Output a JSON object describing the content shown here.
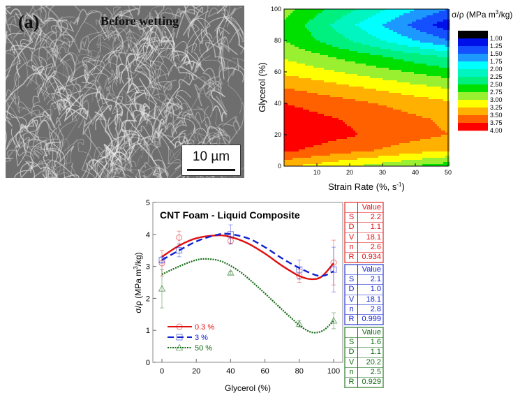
{
  "sem_panel": {
    "panel_label": "(a)",
    "caption": "Before wetting",
    "scale_bar": "10 µm"
  },
  "chart_data": [
    {
      "type": "heatmap",
      "subtype": "filled-contour",
      "xlabel": "Strain Rate (%, s",
      "xlabel_sup": "-1",
      "xlabel_end": ")",
      "ylabel": "Glycerol (%)",
      "colorbar_title": "σ/ρ (MPa m",
      "colorbar_title_sup": "3",
      "colorbar_title_end": "/kg)",
      "xlim": [
        0,
        50
      ],
      "ylim": [
        0,
        100
      ],
      "xticks": [
        "10",
        "20",
        "30",
        "40",
        "50"
      ],
      "yticks": [
        "0",
        "20",
        "40",
        "60",
        "80",
        "100"
      ],
      "x": [
        0,
        10,
        20,
        30,
        40,
        50
      ],
      "y": [
        0,
        10,
        20,
        30,
        40,
        50,
        60,
        70,
        80,
        90,
        100
      ],
      "z": [
        [
          3.3,
          3.16,
          3.02,
          2.88,
          2.74,
          2.6
        ],
        [
          3.8,
          3.69,
          3.58,
          3.47,
          3.36,
          3.25
        ],
        [
          3.97,
          3.87,
          3.78,
          3.68,
          3.59,
          3.5
        ],
        [
          3.9,
          3.81,
          3.72,
          3.63,
          3.54,
          3.45
        ],
        [
          3.75,
          3.66,
          3.57,
          3.48,
          3.39,
          3.3
        ],
        [
          3.5,
          3.4,
          3.29,
          3.19,
          3.08,
          2.98
        ],
        [
          3.2,
          3.08,
          2.96,
          2.84,
          2.72,
          2.6
        ],
        [
          2.95,
          2.8,
          2.65,
          2.5,
          2.35,
          2.2
        ],
        [
          2.75,
          2.5,
          2.25,
          2.0,
          1.75,
          1.5
        ],
        [
          2.7,
          2.38,
          2.06,
          1.74,
          1.42,
          1.1
        ],
        [
          2.85,
          2.58,
          2.31,
          2.04,
          1.77,
          1.5
        ]
      ],
      "levels": [
        "1.00",
        "1.25",
        "1.50",
        "1.75",
        "2.00",
        "2.25",
        "2.50",
        "2.75",
        "3.00",
        "3.25",
        "3.50",
        "3.75",
        "4.00"
      ],
      "level_colors": [
        "#000000",
        "#0010e8",
        "#1450ff",
        "#1c98ff",
        "#00ffff",
        "#00f5c0",
        "#00f080",
        "#00e000",
        "#98f030",
        "#ffff00",
        "#ffb000",
        "#ff6000",
        "#ff0000"
      ]
    },
    {
      "type": "line",
      "title": "CNT Foam - Liquid Composite",
      "xlabel": "Glycerol (%)",
      "ylabel": "σ/ρ (MPa m",
      "ylabel_sup": "3",
      "ylabel_end": "/kg)",
      "xlim": [
        -5,
        105
      ],
      "ylim": [
        0,
        5
      ],
      "xticks": [
        "0",
        "20",
        "40",
        "60",
        "80",
        "100"
      ],
      "yticks": [
        "0",
        "1",
        "2",
        "3",
        "4",
        "5"
      ],
      "series": [
        {
          "name": "0.3 %",
          "color": "#e01010",
          "dash": "",
          "marker": "circle",
          "points": [
            [
              0,
              3.1,
              0.4
            ],
            [
              10,
              3.9,
              0.2
            ],
            [
              40,
              3.8,
              0.1
            ],
            [
              80,
              2.7,
              0.2
            ],
            [
              100,
              3.12,
              0.7
            ]
          ],
          "fit": [
            [
              0,
              3.3
            ],
            [
              10,
              3.65
            ],
            [
              20,
              3.88
            ],
            [
              32,
              3.97
            ],
            [
              40,
              3.92
            ],
            [
              50,
              3.72
            ],
            [
              60,
              3.4
            ],
            [
              70,
              3.02
            ],
            [
              80,
              2.7
            ],
            [
              87,
              2.6
            ],
            [
              93,
              2.68
            ],
            [
              100,
              3.1
            ]
          ],
          "params": [
            [
              "S",
              "2.2"
            ],
            [
              "D",
              "1.1"
            ],
            [
              "V",
              "18.1"
            ],
            [
              "n",
              "2.6"
            ],
            [
              "R",
              "0.934"
            ]
          ]
        },
        {
          "name": "3 %",
          "color": "#1020d0",
          "dash": "9,5",
          "marker": "square",
          "points": [
            [
              0,
              3.2,
              0.1
            ],
            [
              10,
              3.5,
              0.2
            ],
            [
              40,
              4.0,
              0.3
            ],
            [
              80,
              2.9,
              0.3
            ],
            [
              100,
              2.9,
              0.7
            ]
          ],
          "fit": [
            [
              0,
              3.2
            ],
            [
              10,
              3.5
            ],
            [
              20,
              3.78
            ],
            [
              30,
              3.96
            ],
            [
              38,
              4.02
            ],
            [
              50,
              3.88
            ],
            [
              60,
              3.6
            ],
            [
              70,
              3.25
            ],
            [
              80,
              2.95
            ],
            [
              90,
              2.72
            ],
            [
              95,
              2.72
            ],
            [
              100,
              2.85
            ]
          ],
          "params": [
            [
              "S",
              "2.1"
            ],
            [
              "D",
              "1.0"
            ],
            [
              "V",
              "18.1"
            ],
            [
              "n",
              "2.8"
            ],
            [
              "R",
              "0.999"
            ]
          ]
        },
        {
          "name": "50 %",
          "color": "#106a10",
          "dash": "2,1.5",
          "marker": "triangle",
          "points": [
            [
              0,
              2.3,
              0.6
            ],
            [
              40,
              2.8,
              0.05
            ],
            [
              80,
              1.2,
              0.1
            ],
            [
              100,
              1.3,
              0.25
            ]
          ],
          "fit": [
            [
              0,
              2.75
            ],
            [
              10,
              3.0
            ],
            [
              20,
              3.2
            ],
            [
              27,
              3.23
            ],
            [
              35,
              3.15
            ],
            [
              45,
              2.85
            ],
            [
              55,
              2.4
            ],
            [
              65,
              1.9
            ],
            [
              75,
              1.4
            ],
            [
              82,
              1.08
            ],
            [
              88,
              0.93
            ],
            [
              94,
              1.0
            ],
            [
              100,
              1.3
            ]
          ],
          "params": [
            [
              "S",
              "1.6"
            ],
            [
              "D",
              "1.1"
            ],
            [
              "V",
              "20.2"
            ],
            [
              "n",
              "2.5"
            ],
            [
              "R",
              "0.929"
            ]
          ]
        }
      ],
      "table_header": "Value",
      "legend": "bottom-left"
    }
  ]
}
